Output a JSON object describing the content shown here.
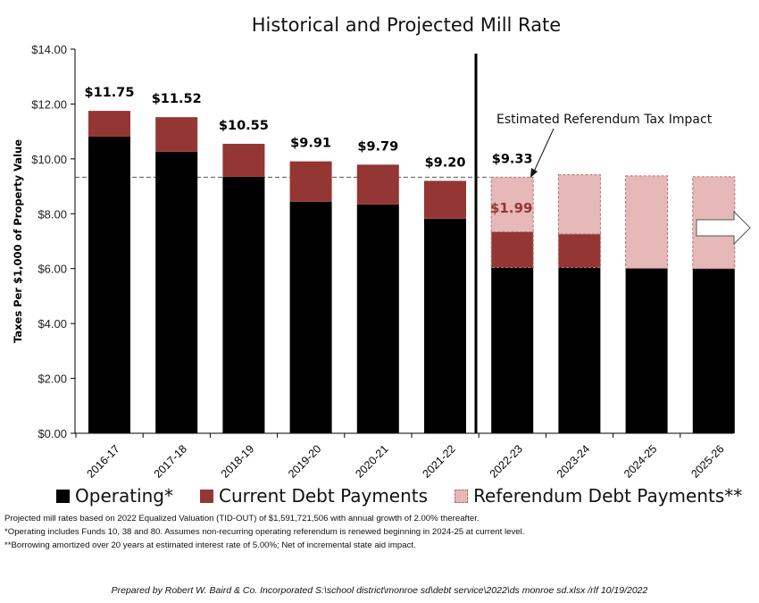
{
  "chart_data": {
    "type": "bar",
    "stacked": true,
    "title": "Historical and Projected Mill Rate",
    "xlabel": "",
    "ylabel": "Taxes Per $1,000 of Property Value",
    "ylim": [
      0,
      14
    ],
    "yticks": [
      "$0.00",
      "$2.00",
      "$4.00",
      "$6.00",
      "$8.00",
      "$10.00",
      "$12.00",
      "$14.00"
    ],
    "grid": false,
    "legend_placement": "bottom",
    "categories": [
      "2016-17",
      "2017-18",
      "2018-19",
      "2019-20",
      "2020-21",
      "2021-22",
      "2022-23",
      "2023-24",
      "2024-25",
      "2025-26"
    ],
    "series": [
      {
        "name": "Operating*",
        "color": "#000000",
        "values": [
          10.81,
          10.26,
          9.35,
          8.44,
          8.34,
          7.82,
          6.04,
          6.04,
          6.01,
          6.0
        ]
      },
      {
        "name": "Current Debt Payments",
        "color": "#943634",
        "values": [
          0.94,
          1.26,
          1.2,
          1.47,
          1.45,
          1.38,
          1.3,
          1.22,
          0,
          0
        ]
      },
      {
        "name": "Referendum Debt Payments**",
        "color": "#e6b9b8",
        "values": [
          0,
          0,
          0,
          0,
          0,
          0,
          1.99,
          2.16,
          3.37,
          3.35
        ]
      }
    ],
    "total_labels": [
      "$11.75",
      "$11.52",
      "$10.55",
      "$9.91",
      "$9.79",
      "$9.20",
      "$9.33",
      "",
      "",
      ""
    ],
    "annotations": {
      "referendum_label": "Estimated Referendum Tax Impact",
      "referendum_value": "$1.99",
      "reference_line_value": 9.33
    }
  },
  "legend": [
    "Operating*",
    "Current Debt Payments",
    "Referendum Debt Payments**"
  ],
  "notes": [
    "Projected mill rates based on 2022 Equalized Valuation (TID-OUT) of $1,591,721,506 with annual growth of 2.00% thereafter.",
    "*Operating includes Funds 10, 38 and 80. Assumes non-recurring operating referendum is renewed beginning in 2024-25 at current level.",
    "**Borrowing amortized over 20 years at estimated interest rate of 5.00%; Net of incremental state aid impact."
  ],
  "credit": "Prepared by Robert W. Baird & Co. Incorporated S:\\school district\\monroe sd\\debt service\\2022\\ds monroe sd.xlsx /rlf 10/19/2022"
}
